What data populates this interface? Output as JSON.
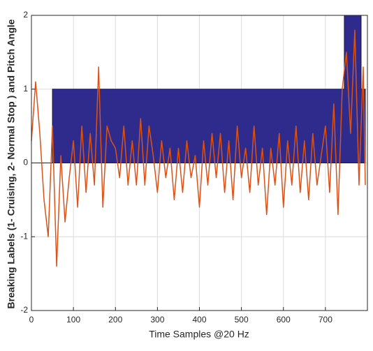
{
  "chart_data": {
    "type": "line",
    "xlabel": "Time Samples @20 Hz",
    "ylabel": "Breaking Labels (1- Cruising, 2- Normal Stop ) and Pitch Angle",
    "xlim": [
      0,
      800
    ],
    "xticks": [
      0,
      100,
      200,
      300,
      400,
      500,
      600,
      700
    ],
    "ylim": [
      -2,
      2
    ],
    "yticks": [
      -2,
      -1,
      0,
      1,
      2
    ],
    "grid": true,
    "series": [
      {
        "color": "#2f2b8c",
        "fill": true,
        "x": [
          0,
          50,
          50,
          745,
          745,
          785,
          785,
          795,
          795
        ],
        "values": [
          0,
          0,
          1,
          1,
          2,
          2,
          1,
          1,
          0
        ]
      },
      {
        "color": "#d95319",
        "fill": false,
        "x": [
          0,
          10,
          20,
          30,
          40,
          50,
          60,
          70,
          80,
          90,
          100,
          110,
          120,
          130,
          140,
          150,
          160,
          170,
          180,
          190,
          200,
          210,
          220,
          230,
          240,
          250,
          260,
          270,
          280,
          290,
          300,
          310,
          320,
          330,
          340,
          350,
          360,
          370,
          380,
          390,
          400,
          410,
          420,
          430,
          440,
          450,
          460,
          470,
          480,
          490,
          500,
          510,
          520,
          530,
          540,
          550,
          560,
          570,
          580,
          590,
          600,
          610,
          620,
          630,
          640,
          650,
          660,
          670,
          680,
          690,
          700,
          710,
          720,
          730,
          740,
          750,
          760,
          770,
          780,
          790,
          795
        ],
        "values": [
          0.3,
          1.1,
          0.4,
          -0.5,
          -1.0,
          0.5,
          -1.4,
          0.1,
          -0.8,
          -0.2,
          0.3,
          -0.6,
          0.5,
          -0.4,
          0.4,
          -0.3,
          1.3,
          -0.6,
          0.5,
          0.3,
          0.2,
          -0.2,
          0.5,
          -0.3,
          0.3,
          -0.3,
          0.6,
          -0.3,
          0.5,
          0.1,
          -0.4,
          0.3,
          -0.2,
          0.2,
          -0.5,
          0.2,
          -0.4,
          0.3,
          -0.2,
          0.1,
          -0.6,
          0.3,
          -0.3,
          0.4,
          -0.2,
          0.4,
          -0.4,
          0.3,
          -0.5,
          0.5,
          -0.2,
          0.2,
          -0.4,
          0.5,
          -0.3,
          0.2,
          -0.7,
          0.2,
          -0.3,
          0.4,
          -0.6,
          0.3,
          -0.3,
          0.5,
          -0.4,
          0.3,
          -0.5,
          0.4,
          -0.3,
          0.1,
          0.5,
          -0.4,
          0.8,
          -0.7,
          1.0,
          1.5,
          0.4,
          1.8,
          -0.3,
          1.3,
          -0.3
        ]
      }
    ]
  }
}
